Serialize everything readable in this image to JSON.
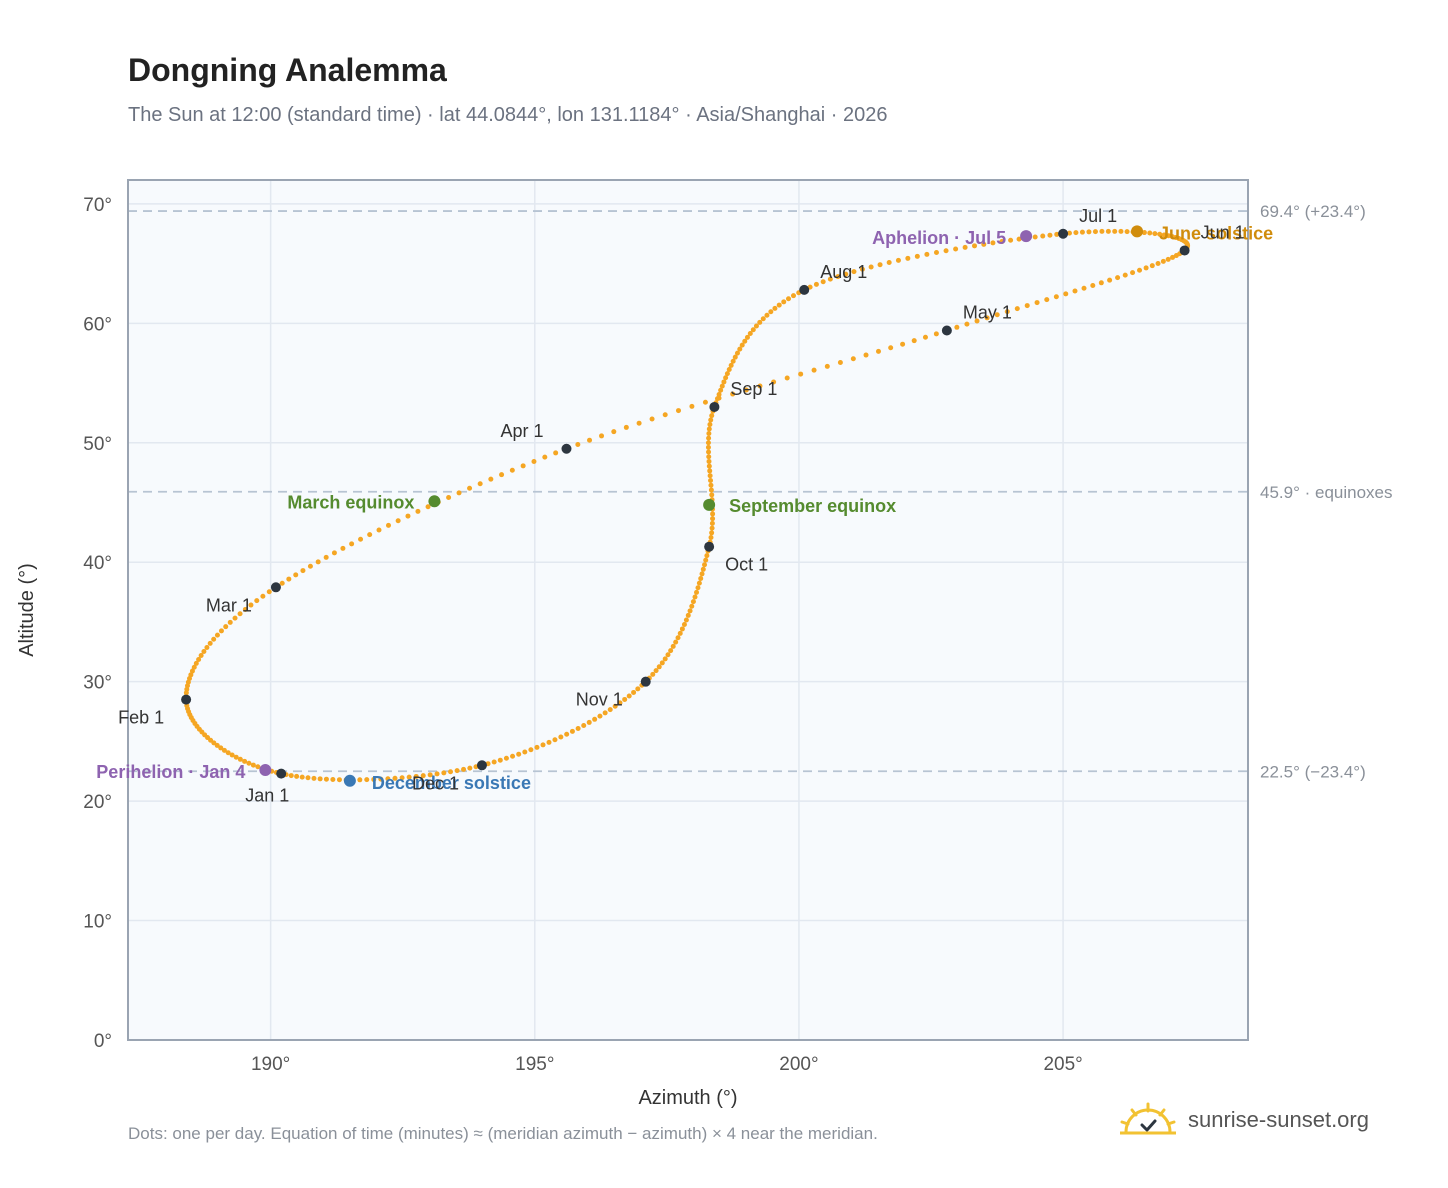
{
  "header": {
    "title": "Dongning Analemma",
    "subtitle": "The Sun at 12:00 (standard time) · lat 44.0844°, lon 131.1184° · Asia/Shanghai · 2026"
  },
  "footer": {
    "note": "Dots: one per day. Equation of time (minutes) ≈ (meridian azimuth − azimuth) × 4 near the meridian.",
    "brand": "sunrise-sunset.org",
    "brand_icon": "sun-logo-icon"
  },
  "colors": {
    "curve": "#f5a623",
    "month_marker": "#2d3640",
    "equinox": "#558b2f",
    "december_solstice": "#3a78b5",
    "june_solstice": "#d08c0c",
    "apsides": "#8e63b0",
    "reference_line": "#b7c4d3",
    "plot_bg": "#f7fafd",
    "grid": "#e2e8f0",
    "frame": "#9aa4b2"
  },
  "chart_data": {
    "type": "scatter",
    "title": "Dongning Analemma",
    "xlabel": "Azimuth (°)",
    "ylabel": "Altitude (°)",
    "xlim": [
      187.3,
      208.5
    ],
    "ylim": [
      0,
      72
    ],
    "x_ticks": [
      190,
      195,
      200,
      205
    ],
    "x_tick_labels": [
      "190°",
      "195°",
      "200°",
      "205°"
    ],
    "y_ticks": [
      0,
      10,
      20,
      30,
      40,
      50,
      60,
      70
    ],
    "y_tick_labels": [
      "0°",
      "10°",
      "20°",
      "30°",
      "40°",
      "50°",
      "60°",
      "70°"
    ],
    "grid": true,
    "series_points": "one dot per day, 365 days of 2026",
    "month_markers": [
      {
        "label": "Jan 1",
        "x": 190.2,
        "y": 22.3
      },
      {
        "label": "Feb 1",
        "x": 188.4,
        "y": 28.5
      },
      {
        "label": "Mar 1",
        "x": 190.1,
        "y": 37.9
      },
      {
        "label": "Apr 1",
        "x": 195.6,
        "y": 49.5
      },
      {
        "label": "May 1",
        "x": 202.8,
        "y": 59.4
      },
      {
        "label": "Jun 1",
        "x": 207.3,
        "y": 66.1
      },
      {
        "label": "Jul 1",
        "x": 205.0,
        "y": 67.5
      },
      {
        "label": "Aug 1",
        "x": 200.1,
        "y": 62.8
      },
      {
        "label": "Sep 1",
        "x": 198.4,
        "y": 53.0
      },
      {
        "label": "Oct 1",
        "x": 198.3,
        "y": 41.3
      },
      {
        "label": "Nov 1",
        "x": 197.1,
        "y": 30.0
      },
      {
        "label": "Dec 1",
        "x": 194.0,
        "y": 23.0
      }
    ],
    "events": [
      {
        "label": "March equinox",
        "x": 193.1,
        "y": 45.1,
        "kind": "equinox"
      },
      {
        "label": "September equinox",
        "x": 198.3,
        "y": 44.8,
        "kind": "equinox"
      },
      {
        "label": "June solstice",
        "x": 206.4,
        "y": 67.7,
        "kind": "june"
      },
      {
        "label": "December solstice",
        "x": 191.5,
        "y": 21.7,
        "kind": "december"
      },
      {
        "label": "Perihelion · Jan 4",
        "x": 189.9,
        "y": 22.6,
        "kind": "apsis"
      },
      {
        "label": "Aphelion · Jul 5",
        "x": 204.3,
        "y": 67.3,
        "kind": "apsis"
      }
    ],
    "reference_lines": [
      {
        "y": 69.4,
        "label": "69.4° (+23.4°)"
      },
      {
        "y": 45.9,
        "label": "45.9° · equinoxes"
      },
      {
        "y": 22.5,
        "label": "22.5° (−23.4°)"
      }
    ]
  }
}
